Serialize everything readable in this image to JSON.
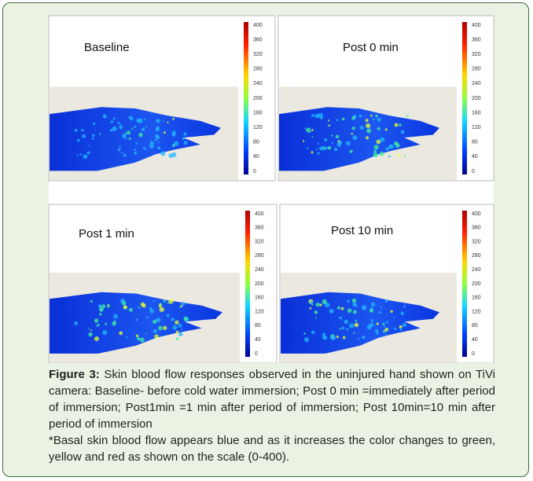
{
  "figure": {
    "panels": [
      {
        "label": "Baseline",
        "scale": [
          400,
          360,
          320,
          280,
          240,
          200,
          160,
          120,
          80,
          40,
          0
        ]
      },
      {
        "label": "Post 0 min",
        "scale": [
          400,
          360,
          320,
          280,
          240,
          200,
          160,
          120,
          80,
          40,
          0
        ]
      },
      {
        "label": "Post 1 min",
        "scale": [
          400,
          360,
          320,
          280,
          240,
          200,
          160,
          120,
          80,
          40,
          0
        ]
      },
      {
        "label": "Post 10 min",
        "scale": [
          400,
          360,
          320,
          280,
          240,
          200,
          160,
          120,
          80,
          40,
          0
        ]
      }
    ],
    "caption": {
      "label": "Figure 3:",
      "text": "Skin blood flow responses observed in the uninjured hand shown on TiVi camera: Baseline- before cold water immersion; Post 0 min =immediately after period of immersion; Post1min =1 min after period of immersion; Post 10min=10 min after period of immersion",
      "note": "*Basal skin blood flow appears blue and as it increases the color changes to green, yellow and red as shown on the scale (0-400)."
    }
  }
}
